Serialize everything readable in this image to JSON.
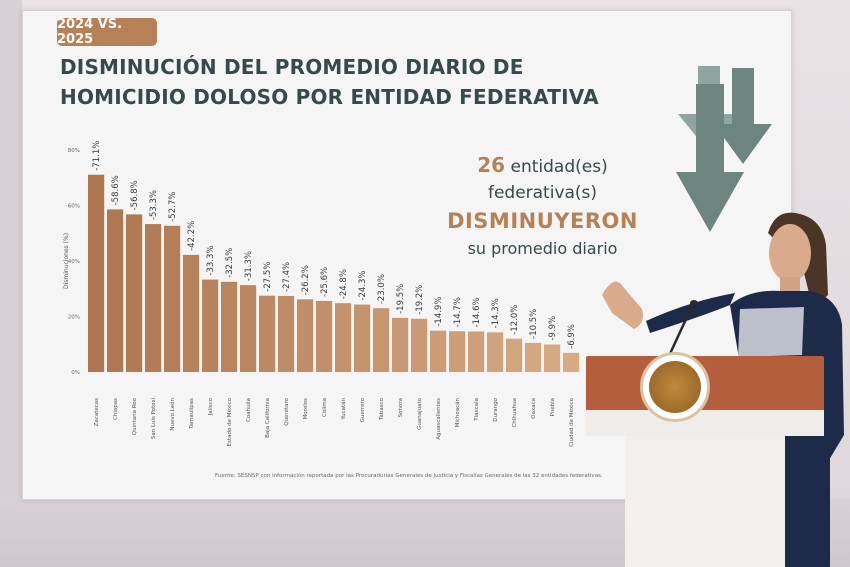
{
  "slide": {
    "badge": "2024 VS. 2025",
    "title_line1": "DISMINUCIÓN DEL PROMEDIO DIARIO DE",
    "title_line2": "HOMICIDIO DOLOSO POR ENTIDAD FEDERATIVA",
    "headline_count": "26",
    "headline_line1": " entidad(es) federativa(s)",
    "headline_line2": "DISMINUYERON",
    "headline_line3": "su promedio diario",
    "source": "Fuente: SESNSP con información reportada por las Procuradurías Generales de Justicia y Fiscalías Generales de las 32 entidades federativas."
  },
  "colors": {
    "bar_dark": "#ad7650",
    "bar_light": "#d6ab84",
    "title": "#37494a",
    "accent": "#b78157",
    "arrow_green": "#6e857f"
  },
  "chart_data": {
    "type": "bar",
    "ylabel": "Disminuciones (%)",
    "xlabel": "",
    "ylim": [
      0,
      80
    ],
    "yticks": [
      "0%",
      "20%",
      "40%",
      "60%",
      "80%"
    ],
    "categories": [
      "Zacatecas",
      "Chiapas",
      "Quintana Roo",
      "San Luis Potosí",
      "Nuevo León",
      "Tamaulipas",
      "Jalisco",
      "Estado de México",
      "Coahuila",
      "Baja California",
      "Querétaro",
      "Morelos",
      "Colima",
      "Yucatán",
      "Guerrero",
      "Tabasco",
      "Sonora",
      "Guanajuato",
      "Aguascalientes",
      "Michoacán",
      "Tlaxcala",
      "Durango",
      "Chihuahua",
      "Oaxaca",
      "Puebla",
      "Ciudad de México"
    ],
    "values": [
      71.1,
      58.6,
      56.8,
      53.3,
      52.7,
      42.2,
      33.3,
      32.5,
      31.3,
      27.5,
      27.4,
      26.2,
      25.6,
      24.8,
      24.3,
      23.0,
      19.5,
      19.2,
      14.9,
      14.7,
      14.6,
      14.3,
      12.0,
      10.5,
      9.9,
      6.9
    ],
    "labels": [
      "-71.1%",
      "-58.6%",
      "-56.8%",
      "-53.3%",
      "-52.7%",
      "-42.2%",
      "-33.3%",
      "-32.5%",
      "-31.3%",
      "-27.5%",
      "-27.4%",
      "-26.2%",
      "-25.6%",
      "-24.8%",
      "-24.3%",
      "-23.0%",
      "-19.5%",
      "-19.2%",
      "-14.9%",
      "-14.7%",
      "-14.6%",
      "-14.3%",
      "-12.0%",
      "-10.5%",
      "-9.9%",
      "-6.9%"
    ],
    "grid": false,
    "legend": "none"
  }
}
